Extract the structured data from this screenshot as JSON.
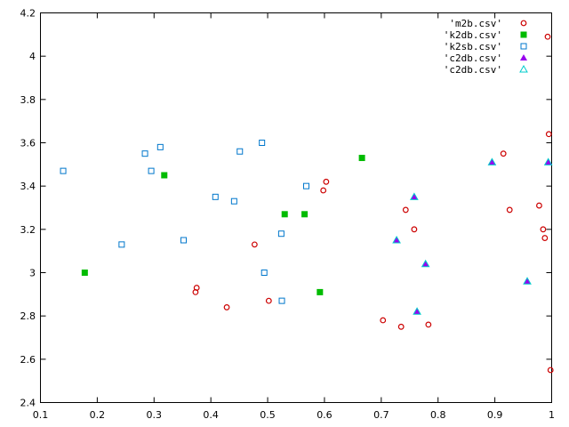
{
  "chart_data": {
    "type": "scatter",
    "title": "",
    "xlabel": "",
    "ylabel": "",
    "xlim": [
      0.1,
      1.0
    ],
    "ylim": [
      2.4,
      4.2
    ],
    "xticks": [
      0.1,
      0.2,
      0.3,
      0.4,
      0.5,
      0.6,
      0.7,
      0.8,
      0.9,
      1.0
    ],
    "xtick_labels": [
      "0.1",
      "0.2",
      "0.3",
      "0.4",
      "0.5",
      "0.6",
      "0.7",
      "0.8",
      "0.9",
      "1"
    ],
    "yticks": [
      2.4,
      2.6,
      2.8,
      3.0,
      3.2,
      3.4,
      3.6,
      3.8,
      4.0,
      4.2
    ],
    "ytick_labels": [
      "2.4",
      "2.6",
      "2.8",
      "3",
      "3.2",
      "3.4",
      "3.6",
      "3.8",
      "4",
      "4.2"
    ],
    "grid": false,
    "legend_position": "top-right",
    "series": [
      {
        "name": "'m2b.csv'",
        "marker": "open-circle",
        "color": "#cc0000",
        "points": [
          [
            0.375,
            2.93
          ],
          [
            0.373,
            2.91
          ],
          [
            0.428,
            2.84
          ],
          [
            0.477,
            3.13
          ],
          [
            0.502,
            2.87
          ],
          [
            0.598,
            3.38
          ],
          [
            0.603,
            3.42
          ],
          [
            0.703,
            2.78
          ],
          [
            0.735,
            2.75
          ],
          [
            0.743,
            3.29
          ],
          [
            0.758,
            3.2
          ],
          [
            0.783,
            2.76
          ],
          [
            0.915,
            3.55
          ],
          [
            0.926,
            3.29
          ],
          [
            0.978,
            3.31
          ],
          [
            0.985,
            3.2
          ],
          [
            0.988,
            3.16
          ],
          [
            0.993,
            4.09
          ],
          [
            0.995,
            3.64
          ],
          [
            0.998,
            2.55
          ]
        ]
      },
      {
        "name": "'k2db.csv'",
        "marker": "filled-square",
        "color": "#00bb00",
        "points": [
          [
            0.178,
            3.0
          ],
          [
            0.318,
            3.45
          ],
          [
            0.53,
            3.27
          ],
          [
            0.565,
            3.27
          ],
          [
            0.592,
            2.91
          ],
          [
            0.666,
            3.53
          ]
        ]
      },
      {
        "name": "'k2sb.csv'",
        "marker": "open-square",
        "color": "#0077cc",
        "points": [
          [
            0.14,
            3.47
          ],
          [
            0.243,
            3.13
          ],
          [
            0.284,
            3.55
          ],
          [
            0.295,
            3.47
          ],
          [
            0.311,
            3.58
          ],
          [
            0.352,
            3.15
          ],
          [
            0.408,
            3.35
          ],
          [
            0.441,
            3.33
          ],
          [
            0.451,
            3.56
          ],
          [
            0.49,
            3.6
          ],
          [
            0.494,
            3.0
          ],
          [
            0.524,
            3.18
          ],
          [
            0.525,
            2.87
          ],
          [
            0.568,
            3.4
          ]
        ]
      },
      {
        "name": "'c2db.csv'",
        "marker": "filled-triangle",
        "color": "#9900ee",
        "points": [
          [
            0.727,
            3.15
          ],
          [
            0.758,
            3.35
          ],
          [
            0.763,
            2.82
          ],
          [
            0.778,
            3.04
          ],
          [
            0.895,
            3.51
          ],
          [
            0.957,
            2.96
          ],
          [
            0.994,
            3.51
          ]
        ]
      },
      {
        "name": "'c2db.csv'",
        "marker": "open-triangle",
        "color": "#00cccc",
        "points": [
          [
            0.727,
            3.15
          ],
          [
            0.758,
            3.35
          ],
          [
            0.763,
            2.82
          ],
          [
            0.778,
            3.04
          ],
          [
            0.895,
            3.51
          ],
          [
            0.957,
            2.96
          ],
          [
            0.994,
            3.51
          ]
        ]
      }
    ]
  }
}
